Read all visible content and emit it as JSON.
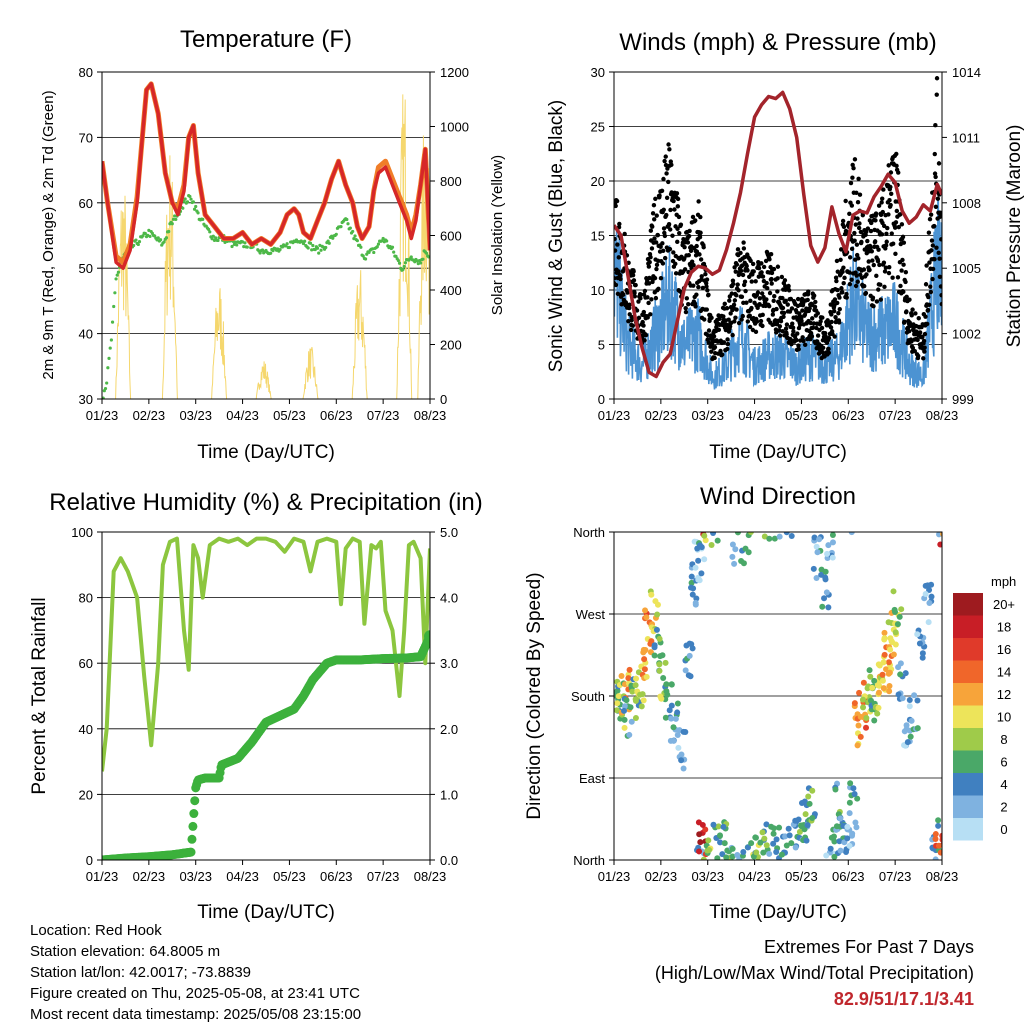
{
  "chart_data": [
    {
      "type": "line",
      "title": "Temperature (F)",
      "xlabel": "Time (Day/UTC)",
      "ylabel": "2m & 9m T (Red, Orange) & 2m Td (Green)",
      "y2label": "Solar Insolation (Yellow)",
      "x_ticks": [
        "01/23",
        "02/23",
        "03/23",
        "04/23",
        "05/23",
        "06/23",
        "07/23",
        "08/23"
      ],
      "xlim": [
        0,
        7
      ],
      "ylim": [
        30,
        85
      ],
      "y_ticks": [
        "30",
        "40",
        "50",
        "60",
        "70",
        "80"
      ],
      "y2lim": [
        0,
        1200
      ],
      "y2_ticks": [
        "0",
        "200",
        "400",
        "600",
        "800",
        "1000",
        "1200"
      ],
      "grid": true,
      "series": [
        {
          "name": "2m T",
          "color": "#d62728",
          "x": [
            0,
            0.12,
            0.3,
            0.45,
            0.6,
            0.75,
            0.85,
            0.95,
            1.05,
            1.2,
            1.35,
            1.5,
            1.62,
            1.75,
            1.85,
            1.95,
            2.05,
            2.2,
            2.4,
            2.6,
            2.8,
            3.0,
            3.2,
            3.4,
            3.6,
            3.8,
            3.95,
            4.1,
            4.2,
            4.3,
            4.45,
            4.6,
            4.75,
            4.9,
            5.05,
            5.2,
            5.35,
            5.45,
            5.55,
            5.7,
            5.8,
            5.9,
            6.05,
            6.2,
            6.35,
            6.5,
            6.6,
            6.7,
            6.8,
            6.9,
            7.0
          ],
          "y": [
            70,
            63,
            53,
            52,
            55,
            63,
            73,
            82,
            83,
            78,
            68,
            63,
            61,
            65,
            74,
            76,
            68,
            61,
            59,
            57,
            57,
            58,
            56,
            57,
            56,
            58,
            61,
            62,
            61,
            58,
            57,
            60,
            63,
            67,
            70,
            66,
            63,
            59,
            57,
            59,
            65,
            68,
            69,
            66,
            63,
            60,
            57,
            60,
            66,
            72,
            55
          ]
        },
        {
          "name": "9m T",
          "color": "#f07d28",
          "x": [
            0,
            0.12,
            0.3,
            0.45,
            0.6,
            0.75,
            0.85,
            0.95,
            1.05,
            1.2,
            1.35,
            1.5,
            1.62,
            1.75,
            1.85,
            1.95,
            2.05,
            2.2,
            2.4,
            2.6,
            2.8,
            3.0,
            3.2,
            3.4,
            3.6,
            3.8,
            3.95,
            4.1,
            4.2,
            4.3,
            4.45,
            4.6,
            4.75,
            4.9,
            5.05,
            5.2,
            5.35,
            5.45,
            5.55,
            5.7,
            5.8,
            5.9,
            6.05,
            6.2,
            6.35,
            6.5,
            6.6,
            6.7,
            6.8,
            6.9,
            7.0
          ],
          "y": [
            70,
            63,
            54,
            53,
            56,
            64,
            73,
            82,
            83,
            78,
            68,
            63,
            62,
            66,
            74,
            76,
            68,
            61,
            59,
            57,
            57,
            58,
            56,
            57,
            56,
            58,
            61,
            62,
            61,
            58,
            57,
            60,
            63,
            67,
            70,
            66,
            63,
            59,
            57,
            59,
            65,
            69,
            70,
            67,
            64,
            61,
            58,
            61,
            66,
            72,
            55
          ]
        },
        {
          "name": "2m Td",
          "color": "#4db848",
          "x": [
            0,
            0.1,
            0.2,
            0.3,
            0.4,
            0.55,
            0.7,
            0.85,
            1.0,
            1.15,
            1.3,
            1.45,
            1.6,
            1.75,
            1.9,
            2.05,
            2.2,
            2.4,
            2.6,
            2.8,
            3.0,
            3.2,
            3.4,
            3.6,
            3.8,
            4.0,
            4.2,
            4.4,
            4.6,
            4.8,
            5.0,
            5.2,
            5.4,
            5.6,
            5.8,
            6.0,
            6.2,
            6.4,
            6.6,
            6.8,
            6.9,
            7.0
          ],
          "y": [
            30,
            33,
            40,
            50,
            53,
            55,
            56,
            57,
            58,
            57,
            56,
            59,
            61,
            63,
            64,
            61,
            59,
            57,
            57,
            56,
            56,
            56,
            55,
            55,
            55,
            56,
            57,
            56,
            55,
            56,
            58,
            60,
            57,
            54,
            55,
            57,
            55,
            52,
            54,
            53,
            55,
            54
          ]
        },
        {
          "name": "Solar Insolation",
          "color": "#f5d76e",
          "axis": "right",
          "peaks": [
            {
              "day": 0.45,
              "value": 850
            },
            {
              "day": 1.45,
              "value": 950
            },
            {
              "day": 2.5,
              "value": 450
            },
            {
              "day": 3.45,
              "value": 150
            },
            {
              "day": 4.45,
              "value": 200
            },
            {
              "day": 5.5,
              "value": 500
            },
            {
              "day": 6.45,
              "value": 1200
            },
            {
              "day": 6.9,
              "value": 1100
            }
          ]
        }
      ]
    },
    {
      "type": "scatter",
      "title": "Winds (mph) & Pressure (mb)",
      "xlabel": "Time (Day/UTC)",
      "ylabel": "Sonic Wind & Gust (Blue, Black)",
      "y2label": "Station Pressure (Maroon)",
      "x_ticks": [
        "01/23",
        "02/23",
        "03/23",
        "04/23",
        "05/23",
        "06/23",
        "07/23",
        "08/23"
      ],
      "xlim": [
        0,
        7
      ],
      "ylim": [
        0,
        30
      ],
      "y_ticks": [
        "0",
        "5",
        "10",
        "15",
        "20",
        "25",
        "30"
      ],
      "y2lim": [
        999,
        1015
      ],
      "y2_ticks": [
        "999",
        "1002",
        "1005",
        "1008",
        "1011",
        "1014"
      ],
      "grid": true,
      "series": [
        {
          "name": "Sonic Wind",
          "color": "#4c93d2",
          "x": [
            0,
            0.3,
            0.6,
            0.9,
            1.2,
            1.5,
            1.8,
            2.1,
            2.4,
            2.7,
            3.0,
            3.3,
            3.6,
            3.9,
            4.2,
            4.5,
            4.8,
            5.1,
            5.4,
            5.7,
            6.0,
            6.3,
            6.6,
            6.9,
            7.0
          ],
          "y": [
            12,
            5,
            3,
            6,
            9,
            5,
            6,
            2,
            3,
            6,
            3,
            4,
            4,
            3,
            4,
            3,
            4,
            9,
            6,
            6,
            7,
            3,
            2,
            12,
            10
          ]
        },
        {
          "name": "Gust",
          "color": "#000000",
          "x": [
            0,
            0.3,
            0.6,
            0.9,
            1.2,
            1.5,
            1.8,
            2.1,
            2.4,
            2.7,
            3.0,
            3.3,
            3.6,
            3.9,
            4.2,
            4.5,
            4.8,
            5.1,
            5.4,
            5.7,
            6.0,
            6.3,
            6.6,
            6.9,
            7.0
          ],
          "y": [
            19,
            12,
            8,
            17,
            21,
            13,
            16,
            6,
            8,
            13,
            11,
            12,
            10,
            8,
            9,
            6,
            12,
            20,
            14,
            16,
            21,
            8,
            6,
            26,
            14
          ]
        },
        {
          "name": "Station Pressure",
          "color": "#a3242b",
          "axis": "right",
          "x": [
            0,
            0.15,
            0.3,
            0.45,
            0.6,
            0.75,
            0.9,
            1.05,
            1.2,
            1.35,
            1.5,
            1.65,
            1.8,
            1.95,
            2.1,
            2.25,
            2.4,
            2.55,
            2.7,
            2.85,
            3.0,
            3.15,
            3.3,
            3.45,
            3.6,
            3.75,
            3.9,
            4.05,
            4.2,
            4.35,
            4.5,
            4.65,
            4.8,
            4.95,
            5.1,
            5.25,
            5.4,
            5.55,
            5.7,
            5.85,
            6.0,
            6.15,
            6.3,
            6.45,
            6.6,
            6.75,
            6.9,
            7.0
          ],
          "y": [
            1007.5,
            1007.0,
            1005.0,
            1003.0,
            1001.5,
            1000.3,
            1000.1,
            1000.8,
            1001.2,
            1002.8,
            1004.4,
            1005.2,
            1005.5,
            1005.4,
            1005.1,
            1005.3,
            1006.3,
            1007.6,
            1009.1,
            1011.0,
            1012.8,
            1013.4,
            1013.8,
            1013.7,
            1014.0,
            1013.2,
            1011.8,
            1009.0,
            1006.5,
            1005.7,
            1006.4,
            1008.4,
            1007.1,
            1006.2,
            1008.0,
            1008.2,
            1008.1,
            1008.9,
            1009.4,
            1010.0,
            1009.6,
            1008.2,
            1007.6,
            1007.9,
            1008.5,
            1008.2,
            1009.5,
            1009.0
          ]
        }
      ]
    },
    {
      "type": "line",
      "title": "Relative Humidity (%) & Precipitation (in)",
      "xlabel": "Time (Day/UTC)",
      "ylabel": "Percent & Total Rainfall",
      "x_ticks": [
        "01/23",
        "02/23",
        "03/23",
        "04/23",
        "05/23",
        "06/23",
        "07/23",
        "08/23"
      ],
      "xlim": [
        0,
        7
      ],
      "ylim": [
        0,
        100
      ],
      "y_ticks": [
        "0",
        "20",
        "40",
        "60",
        "80",
        "100"
      ],
      "y2lim": [
        0,
        5
      ],
      "y2_ticks": [
        "0.0",
        "1.0",
        "2.0",
        "3.0",
        "4.0",
        "5.0"
      ],
      "grid": true,
      "series": [
        {
          "name": "Relative Humidity",
          "color": "#8cc63f",
          "x": [
            0,
            0.1,
            0.25,
            0.4,
            0.55,
            0.75,
            0.9,
            1.05,
            1.2,
            1.3,
            1.45,
            1.6,
            1.75,
            1.85,
            1.95,
            2.05,
            2.15,
            2.3,
            2.5,
            2.7,
            2.9,
            3.1,
            3.3,
            3.5,
            3.7,
            3.9,
            4.1,
            4.3,
            4.45,
            4.6,
            4.8,
            5.0,
            5.1,
            5.2,
            5.35,
            5.5,
            5.6,
            5.75,
            5.85,
            5.95,
            6.05,
            6.2,
            6.35,
            6.45,
            6.55,
            6.65,
            6.8,
            6.9,
            7.0
          ],
          "y": [
            27,
            40,
            88,
            92,
            88,
            80,
            56,
            35,
            60,
            90,
            97,
            98,
            70,
            58,
            96,
            92,
            80,
            96,
            98,
            97,
            98,
            96,
            98,
            98,
            97,
            94,
            98,
            97,
            88,
            97,
            98,
            97,
            78,
            95,
            98,
            97,
            72,
            96,
            95,
            97,
            76,
            70,
            50,
            70,
            96,
            97,
            92,
            60,
            95
          ]
        },
        {
          "name": "Total Rainfall",
          "color": "#3cb13c",
          "axis": "right",
          "x": [
            0,
            0.5,
            1.0,
            1.5,
            1.9,
            2.0,
            2.05,
            2.2,
            2.5,
            2.55,
            2.9,
            3.2,
            3.5,
            3.8,
            4.1,
            4.3,
            4.5,
            4.8,
            5.0,
            5.5,
            6.0,
            6.5,
            6.8,
            7.0
          ],
          "y": [
            0,
            0.03,
            0.05,
            0.08,
            0.12,
            1.1,
            1.22,
            1.25,
            1.25,
            1.45,
            1.55,
            1.8,
            2.1,
            2.2,
            2.3,
            2.5,
            2.75,
            3.0,
            3.05,
            3.05,
            3.07,
            3.08,
            3.1,
            3.41
          ]
        }
      ]
    },
    {
      "type": "scatter",
      "title": "Wind Direction",
      "xlabel": "Time (Day/UTC)",
      "ylabel": "Direction (Colored By Speed)",
      "x_ticks": [
        "01/23",
        "02/23",
        "03/23",
        "04/23",
        "05/23",
        "06/23",
        "07/23",
        "08/23"
      ],
      "xlim": [
        0,
        7
      ],
      "y_ticks": [
        "North",
        "East",
        "South",
        "West",
        "North"
      ],
      "ylim": [
        0,
        360
      ],
      "grid": true,
      "legend": {
        "title": "mph",
        "placement": "right",
        "labels": [
          "20+",
          "18",
          "16",
          "14",
          "12",
          "10",
          "8",
          "6",
          "4",
          "2",
          "0"
        ],
        "colors": [
          "#9e1b1f",
          "#c81e26",
          "#e03a2a",
          "#f0662a",
          "#f7a43a",
          "#ede45a",
          "#9fcb4a",
          "#4aa868",
          "#4080c0",
          "#7fb2e0",
          "#b7dff4"
        ]
      },
      "series": [
        {
          "name": "direction",
          "x": [
            0.05,
            0.15,
            0.25,
            0.3,
            0.45,
            0.55,
            0.65,
            0.75,
            0.85,
            0.95,
            1.05,
            1.15,
            1.3,
            1.45,
            1.6,
            1.7,
            1.8,
            1.85,
            1.9,
            2.0,
            2.2,
            2.4,
            2.6,
            2.8,
            3.0,
            3.2,
            3.4,
            3.6,
            3.8,
            4.0,
            4.1,
            4.2,
            4.35,
            4.5,
            4.6,
            4.7,
            4.8,
            4.9,
            5.0,
            5.1,
            5.2,
            5.3,
            5.4,
            5.5,
            5.6,
            5.7,
            5.8,
            5.85,
            5.95,
            6.05,
            6.15,
            6.25,
            6.4,
            6.55,
            6.7,
            6.85,
            6.95
          ],
          "y": [
            180,
            170,
            185,
            160,
            175,
            190,
            220,
            250,
            270,
            230,
            200,
            170,
            150,
            120,
            220,
            300,
            330,
            350,
            20,
            10,
            15,
            25,
            350,
            350,
            15,
            20,
            15,
            18,
            20,
            30,
            40,
            60,
            330,
            300,
            350,
            10,
            60,
            30,
            20,
            60,
            150,
            170,
            180,
            185,
            175,
            190,
            200,
            230,
            250,
            270,
            200,
            130,
            160,
            230,
            280,
            20,
            10
          ],
          "speed": [
            6,
            8,
            12,
            5,
            7,
            9,
            12,
            14,
            10,
            5,
            8,
            6,
            4,
            2,
            4,
            3,
            2,
            3,
            18,
            8,
            6,
            6,
            4,
            4,
            7,
            6,
            5,
            4,
            4,
            5,
            4,
            6,
            3,
            4,
            2,
            4,
            5,
            4,
            3,
            4,
            12,
            14,
            9,
            7,
            8,
            10,
            11,
            12,
            10,
            8,
            4,
            3,
            3,
            3,
            3,
            4,
            15
          ]
        }
      ]
    }
  ],
  "footer": {
    "location": "Location: Red Hook",
    "elevation": "Station elevation: 64.8005 m",
    "latlon": "Station lat/lon: 42.0017; -73.8839",
    "created": "Figure created on Thu, 2025-05-08, at 23:41 UTC",
    "timestamp": "Most recent data timestamp: 2025/05/08 23:15:00"
  },
  "extremes": {
    "title": "Extremes For Past 7 Days",
    "subtitle": "(High/Low/Max Wind/Total Precipitation)",
    "values": "82.9/51/17.1/3.41"
  }
}
